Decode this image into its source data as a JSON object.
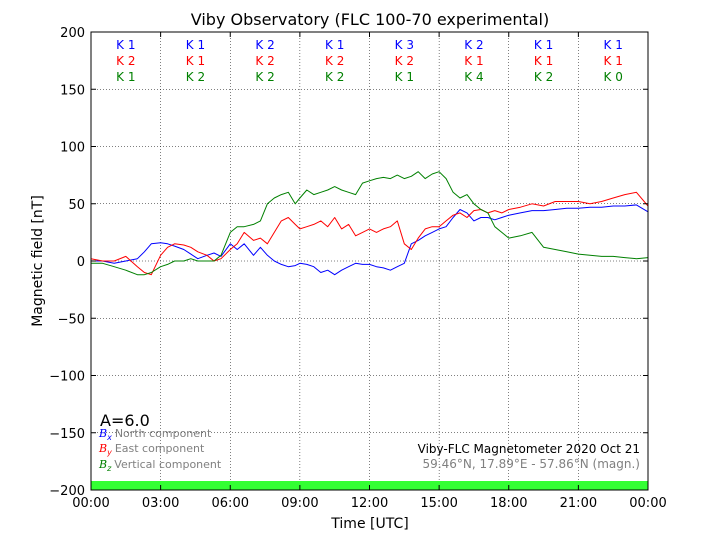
{
  "chart_data": {
    "type": "line",
    "title": "Viby Observatory (FLC 100-70 experimental)",
    "xlabel": "Time [UTC]",
    "ylabel": "Magnetic field [nT]",
    "xlim": [
      0,
      24
    ],
    "ylim": [
      -200,
      200
    ],
    "grid": true,
    "x_ticks": [
      "00:00",
      "03:00",
      "06:00",
      "09:00",
      "12:00",
      "15:00",
      "18:00",
      "21:00",
      "00:00"
    ],
    "y_ticks": [
      "200",
      "150",
      "100",
      "50",
      "0",
      "−50",
      "−100",
      "−150",
      "−200"
    ],
    "legend": {
      "placement": "lower-left",
      "entries": [
        {
          "symbol": "B",
          "subscript": "x",
          "label": "North component",
          "color": "#0000ff"
        },
        {
          "symbol": "B",
          "subscript": "y",
          "label": "East component",
          "color": "#ff0000"
        },
        {
          "symbol": "B",
          "subscript": "z",
          "label": "Vertical component",
          "color": "#008000"
        }
      ]
    },
    "a_index_label": "A=6.0",
    "info_line_1": "Viby-FLC Magnetometer 2020 Oct 21",
    "info_line_2": "59.46°N, 17.89°E - 57.86°N (magn.)",
    "status_band_color": "#33ff33",
    "k_indices": [
      {
        "bx": "K 1",
        "by": "K 2",
        "bz": "K 1"
      },
      {
        "bx": "K 1",
        "by": "K 1",
        "bz": "K 2"
      },
      {
        "bx": "K 2",
        "by": "K 2",
        "bz": "K 2"
      },
      {
        "bx": "K 1",
        "by": "K 2",
        "bz": "K 2"
      },
      {
        "bx": "K 3",
        "by": "K 2",
        "bz": "K 1"
      },
      {
        "bx": "K 2",
        "by": "K 1",
        "bz": "K 4"
      },
      {
        "bx": "K 1",
        "by": "K 1",
        "bz": "K 2"
      },
      {
        "bx": "K 1",
        "by": "K 1",
        "bz": "K 0"
      }
    ],
    "series": [
      {
        "name": "North component",
        "color": "#0000ff",
        "x": [
          0,
          0.5,
          1,
          1.5,
          2,
          2.3,
          2.6,
          3,
          3.3,
          3.6,
          4,
          4.3,
          4.6,
          5,
          5.3,
          5.6,
          6,
          6.3,
          6.6,
          7,
          7.3,
          7.6,
          7.9,
          8.2,
          8.5,
          8.8,
          9,
          9.3,
          9.6,
          9.9,
          10.2,
          10.5,
          10.8,
          11.1,
          11.4,
          11.7,
          12,
          12.3,
          12.6,
          12.9,
          13.2,
          13.5,
          13.8,
          14.1,
          14.4,
          14.7,
          15,
          15.3,
          15.6,
          15.9,
          16.2,
          16.5,
          16.8,
          17.1,
          17.4,
          17.7,
          18,
          18.5,
          19,
          19.5,
          20,
          20.5,
          21,
          21.5,
          22,
          22.5,
          23,
          23.5,
          24
        ],
        "y": [
          0,
          0,
          -2,
          0,
          2,
          8,
          15,
          16,
          15,
          13,
          10,
          6,
          2,
          5,
          7,
          4,
          15,
          10,
          15,
          5,
          12,
          5,
          0,
          -3,
          -5,
          -4,
          -2,
          -3,
          -5,
          -10,
          -8,
          -12,
          -8,
          -5,
          -2,
          -3,
          -3,
          -5,
          -6,
          -8,
          -5,
          -2,
          15,
          18,
          22,
          25,
          28,
          30,
          38,
          45,
          42,
          35,
          38,
          38,
          36,
          38,
          40,
          42,
          44,
          44,
          45,
          46,
          46,
          47,
          47,
          48,
          48,
          49,
          43
        ]
      },
      {
        "name": "East component",
        "color": "#ff0000",
        "x": [
          0,
          0.5,
          1,
          1.5,
          2,
          2.3,
          2.6,
          3,
          3.3,
          3.6,
          4,
          4.3,
          4.6,
          5,
          5.3,
          5.6,
          6,
          6.3,
          6.6,
          7,
          7.3,
          7.6,
          7.9,
          8.2,
          8.5,
          8.8,
          9,
          9.3,
          9.6,
          9.9,
          10.2,
          10.5,
          10.8,
          11.1,
          11.4,
          11.7,
          12,
          12.3,
          12.6,
          12.9,
          13.2,
          13.5,
          13.8,
          14.1,
          14.4,
          14.7,
          15,
          15.3,
          15.6,
          15.9,
          16.2,
          16.5,
          16.8,
          17.1,
          17.4,
          17.7,
          18,
          18.5,
          19,
          19.5,
          20,
          20.5,
          21,
          21.5,
          22,
          22.5,
          23,
          23.5,
          24
        ],
        "y": [
          2,
          0,
          0,
          4,
          -5,
          -10,
          -12,
          5,
          12,
          15,
          14,
          12,
          8,
          5,
          0,
          2,
          10,
          15,
          25,
          18,
          20,
          15,
          25,
          35,
          38,
          32,
          28,
          30,
          32,
          35,
          30,
          38,
          28,
          32,
          22,
          25,
          28,
          25,
          28,
          30,
          35,
          15,
          10,
          20,
          28,
          30,
          30,
          35,
          40,
          42,
          38,
          44,
          45,
          42,
          44,
          42,
          45,
          47,
          50,
          48,
          52,
          52,
          52,
          50,
          52,
          55,
          58,
          60,
          48
        ]
      },
      {
        "name": "Vertical component",
        "color": "#008000",
        "x": [
          0,
          0.5,
          1,
          1.5,
          2,
          2.3,
          2.6,
          3,
          3.3,
          3.6,
          4,
          4.3,
          4.6,
          5,
          5.3,
          5.6,
          6,
          6.3,
          6.6,
          7,
          7.3,
          7.6,
          7.9,
          8.2,
          8.5,
          8.8,
          9,
          9.3,
          9.6,
          9.9,
          10.2,
          10.5,
          10.8,
          11.1,
          11.4,
          11.7,
          12,
          12.3,
          12.6,
          12.9,
          13.2,
          13.5,
          13.8,
          14.1,
          14.4,
          14.7,
          15,
          15.3,
          15.6,
          15.9,
          16.2,
          16.5,
          16.8,
          17.1,
          17.4,
          17.7,
          18,
          18.5,
          19,
          19.5,
          20,
          20.5,
          21,
          21.5,
          22,
          22.5,
          23,
          23.5,
          24
        ],
        "y": [
          -2,
          -2,
          -5,
          -8,
          -12,
          -12,
          -10,
          -5,
          -3,
          0,
          0,
          2,
          0,
          0,
          0,
          5,
          25,
          30,
          30,
          32,
          35,
          50,
          55,
          58,
          60,
          50,
          55,
          62,
          58,
          60,
          62,
          65,
          62,
          60,
          58,
          68,
          70,
          72,
          73,
          72,
          75,
          72,
          74,
          78,
          72,
          76,
          78,
          72,
          60,
          55,
          58,
          50,
          45,
          42,
          30,
          25,
          20,
          22,
          25,
          12,
          10,
          8,
          6,
          5,
          4,
          4,
          3,
          2,
          3
        ]
      }
    ]
  }
}
